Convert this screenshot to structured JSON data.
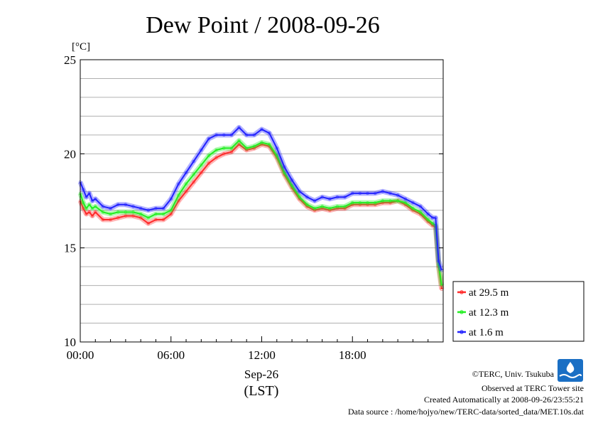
{
  "colors": {
    "at_29_5": "#ff2a2a",
    "at_12_3": "#22ee22",
    "at_1_6": "#2222ff",
    "grid": "#b0b0b0",
    "logo": "#1a6fc4"
  },
  "icons": {
    "logo": "terc-logo-icon"
  },
  "chart_data": {
    "type": "line",
    "title": "Dew Point / 2008-09-26",
    "unit": "[°C]",
    "ylim": [
      10,
      25
    ],
    "xlim": [
      0,
      24
    ],
    "yticks": [
      {
        "value": 25,
        "label": "25"
      },
      {
        "value": 20,
        "label": "20"
      },
      {
        "value": 15,
        "label": "15"
      },
      {
        "value": 10,
        "label": "10"
      }
    ],
    "xticks": [
      {
        "value": 0,
        "label": "00:00"
      },
      {
        "value": 6,
        "label": "06:00"
      },
      {
        "value": 12,
        "label": "12:00"
      },
      {
        "value": 18,
        "label": "18:00"
      }
    ],
    "xlabel_date": "Sep-26",
    "xlabel_zone": "(LST)",
    "grid": true,
    "legend_position": "right",
    "series": [
      {
        "name": "at 29.5 m",
        "color": "#ff2a2a",
        "x": [
          0,
          0.2,
          0.4,
          0.6,
          0.8,
          1.0,
          1.5,
          2.0,
          2.5,
          3.0,
          3.5,
          4.0,
          4.5,
          5.0,
          5.5,
          6.0,
          6.5,
          7.0,
          7.5,
          8.0,
          8.5,
          9.0,
          9.5,
          10.0,
          10.5,
          11.0,
          11.5,
          12.0,
          12.5,
          13.0,
          13.5,
          14.0,
          14.5,
          15.0,
          15.5,
          16.0,
          16.5,
          17.0,
          17.5,
          18.0,
          18.5,
          19.0,
          19.5,
          20.0,
          20.5,
          21.0,
          21.5,
          22.0,
          22.5,
          23.0,
          23.3,
          23.5,
          23.7,
          23.9
        ],
        "y": [
          17.5,
          17.1,
          16.8,
          16.9,
          16.7,
          16.9,
          16.5,
          16.5,
          16.6,
          16.7,
          16.7,
          16.6,
          16.3,
          16.5,
          16.5,
          16.8,
          17.5,
          18.0,
          18.5,
          19.0,
          19.5,
          19.8,
          20.0,
          20.1,
          20.5,
          20.2,
          20.3,
          20.5,
          20.4,
          19.8,
          18.9,
          18.2,
          17.6,
          17.2,
          17.0,
          17.1,
          17.0,
          17.1,
          17.1,
          17.3,
          17.3,
          17.3,
          17.3,
          17.4,
          17.4,
          17.5,
          17.3,
          17.0,
          16.8,
          16.4,
          16.2,
          16.1,
          14.0,
          12.8
        ]
      },
      {
        "name": "at 12.3 m",
        "color": "#22ee22",
        "x": [
          0,
          0.2,
          0.4,
          0.6,
          0.8,
          1.0,
          1.5,
          2.0,
          2.5,
          3.0,
          3.5,
          4.0,
          4.5,
          5.0,
          5.5,
          6.0,
          6.5,
          7.0,
          7.5,
          8.0,
          8.5,
          9.0,
          9.5,
          10.0,
          10.5,
          11.0,
          11.5,
          12.0,
          12.5,
          13.0,
          13.5,
          14.0,
          14.5,
          15.0,
          15.5,
          16.0,
          16.5,
          17.0,
          17.5,
          18.0,
          18.5,
          19.0,
          19.5,
          20.0,
          20.5,
          21.0,
          21.5,
          22.0,
          22.5,
          23.0,
          23.3,
          23.5,
          23.7,
          23.9
        ],
        "y": [
          17.9,
          17.4,
          17.1,
          17.3,
          17.1,
          17.2,
          16.9,
          16.8,
          16.9,
          16.9,
          16.9,
          16.8,
          16.6,
          16.8,
          16.8,
          17.0,
          17.8,
          18.4,
          18.9,
          19.4,
          19.9,
          20.2,
          20.3,
          20.3,
          20.7,
          20.3,
          20.4,
          20.6,
          20.5,
          19.9,
          19.0,
          18.3,
          17.7,
          17.3,
          17.1,
          17.2,
          17.1,
          17.2,
          17.2,
          17.4,
          17.4,
          17.4,
          17.4,
          17.5,
          17.5,
          17.5,
          17.4,
          17.1,
          16.9,
          16.5,
          16.3,
          16.2,
          14.1,
          13.0
        ]
      },
      {
        "name": "at 1.6 m",
        "color": "#2222ff",
        "x": [
          0,
          0.2,
          0.4,
          0.6,
          0.8,
          1.0,
          1.5,
          2.0,
          2.5,
          3.0,
          3.5,
          4.0,
          4.5,
          5.0,
          5.5,
          6.0,
          6.5,
          7.0,
          7.5,
          8.0,
          8.5,
          9.0,
          9.5,
          10.0,
          10.5,
          11.0,
          11.5,
          12.0,
          12.5,
          13.0,
          13.5,
          14.0,
          14.5,
          15.0,
          15.5,
          16.0,
          16.5,
          17.0,
          17.5,
          18.0,
          18.5,
          19.0,
          19.5,
          20.0,
          20.5,
          21.0,
          21.5,
          22.0,
          22.5,
          23.0,
          23.3,
          23.5,
          23.7,
          23.9
        ],
        "y": [
          18.5,
          18.1,
          17.7,
          17.9,
          17.5,
          17.6,
          17.2,
          17.1,
          17.3,
          17.3,
          17.2,
          17.1,
          17.0,
          17.1,
          17.1,
          17.6,
          18.4,
          19.0,
          19.6,
          20.2,
          20.8,
          21.0,
          21.0,
          21.0,
          21.4,
          21.0,
          21.0,
          21.3,
          21.1,
          20.3,
          19.3,
          18.6,
          18.0,
          17.7,
          17.5,
          17.7,
          17.6,
          17.7,
          17.7,
          17.9,
          17.9,
          17.9,
          17.9,
          18.0,
          17.9,
          17.8,
          17.6,
          17.4,
          17.2,
          16.8,
          16.6,
          16.6,
          14.3,
          13.8
        ]
      }
    ]
  },
  "footer": {
    "copyright": "©TERC, Univ. Tsukuba",
    "observed": "Observed at TERC Tower site",
    "created": "Created Automatically at 2008-09-26/23:55:21",
    "source": "Data source : /home/hojyo/new/TERC-data/sorted_data/MET.10s.dat"
  }
}
